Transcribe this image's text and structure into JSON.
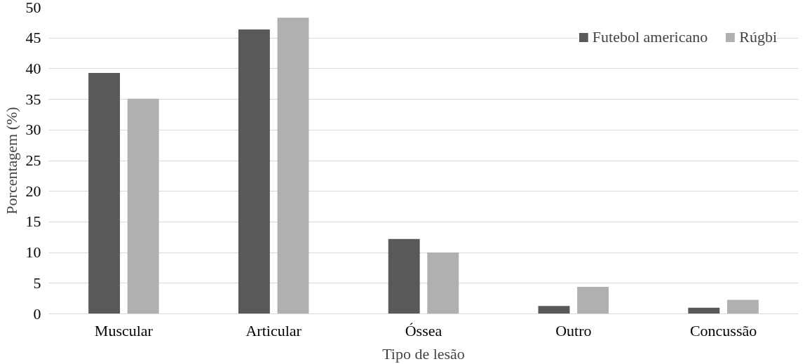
{
  "chart_data": {
    "type": "bar",
    "xlabel": "Tipo de lesão",
    "ylabel": "Porcentagem (%)",
    "categories": [
      "Muscular",
      "Articular",
      "Óssea",
      "Outro",
      "Concussão"
    ],
    "series": [
      {
        "name": "Futebol americano",
        "color": "#595959",
        "values": [
          39.3,
          46.4,
          12.2,
          1.3,
          1.0
        ]
      },
      {
        "name": "Rúgbi",
        "color": "#b0b0b0",
        "values": [
          35.1,
          48.3,
          10.0,
          4.4,
          2.3
        ]
      }
    ],
    "ylim": [
      0,
      50
    ],
    "yticks": [
      0,
      5,
      10,
      15,
      20,
      25,
      30,
      35,
      40,
      45,
      50
    ],
    "grid": "y",
    "legend": "top right"
  }
}
